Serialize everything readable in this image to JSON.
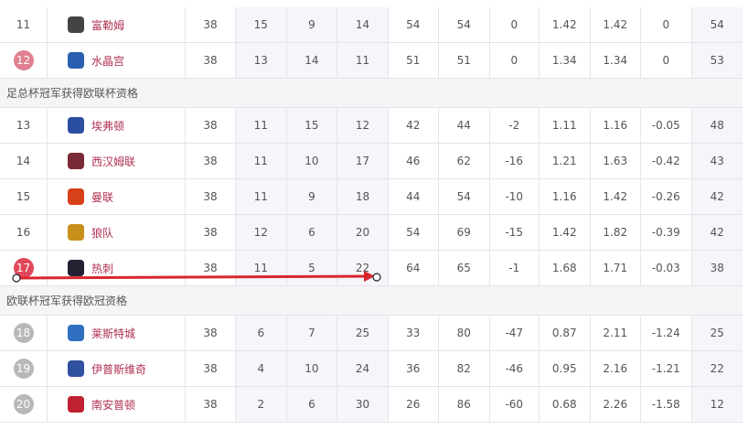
{
  "colors": {
    "team_link": "#b03050",
    "badge_pink": "#e08090",
    "badge_red": "#e0485a",
    "badge_grey": "#b8b8b8",
    "arrow": "#d8262e"
  },
  "sections": [
    {
      "rows": [
        {
          "rank": "11",
          "badge": null,
          "team": "富勒姆",
          "logo": "#444",
          "vals": [
            "38",
            "15",
            "9",
            "14",
            "54",
            "54",
            "0",
            "1.42",
            "1.42",
            "0",
            "54"
          ]
        },
        {
          "rank": "12",
          "badge": "pink",
          "team": "水晶宫",
          "logo": "#2a5fb0",
          "vals": [
            "38",
            "13",
            "14",
            "11",
            "51",
            "51",
            "0",
            "1.34",
            "1.34",
            "0",
            "53"
          ]
        }
      ]
    },
    {
      "title": "足总杯冠军获得欧联杯资格",
      "rows": [
        {
          "rank": "13",
          "badge": null,
          "team": "埃弗顿",
          "logo": "#2b4fa0",
          "vals": [
            "38",
            "11",
            "15",
            "12",
            "42",
            "44",
            "-2",
            "1.11",
            "1.16",
            "-0.05",
            "48"
          ]
        },
        {
          "rank": "14",
          "badge": null,
          "team": "西汉姆联",
          "logo": "#7a2a35",
          "vals": [
            "38",
            "11",
            "10",
            "17",
            "46",
            "62",
            "-16",
            "1.21",
            "1.63",
            "-0.42",
            "43"
          ]
        },
        {
          "rank": "15",
          "badge": null,
          "team": "曼联",
          "logo": "#d8401a",
          "vals": [
            "38",
            "11",
            "9",
            "18",
            "44",
            "54",
            "-10",
            "1.16",
            "1.42",
            "-0.26",
            "42"
          ]
        },
        {
          "rank": "16",
          "badge": null,
          "team": "狼队",
          "logo": "#c8901a",
          "vals": [
            "38",
            "12",
            "6",
            "20",
            "54",
            "69",
            "-15",
            "1.42",
            "1.82",
            "-0.39",
            "42"
          ]
        },
        {
          "rank": "17",
          "badge": "red",
          "team": "热刺",
          "logo": "#223",
          "vals": [
            "38",
            "11",
            "5",
            "22",
            "64",
            "65",
            "-1",
            "1.68",
            "1.71",
            "-0.03",
            "38"
          ]
        }
      ]
    },
    {
      "title": "欧联杯冠军获得欧冠资格",
      "rows": [
        {
          "rank": "18",
          "badge": "grey",
          "team": "莱斯特城",
          "logo": "#3070c0",
          "vals": [
            "38",
            "6",
            "7",
            "25",
            "33",
            "80",
            "-47",
            "0.87",
            "2.11",
            "-1.24",
            "25"
          ]
        },
        {
          "rank": "19",
          "badge": "grey",
          "team": "伊普斯维奇",
          "logo": "#3050a0",
          "vals": [
            "38",
            "4",
            "10",
            "24",
            "36",
            "82",
            "-46",
            "0.95",
            "2.16",
            "-1.21",
            "22"
          ]
        },
        {
          "rank": "20",
          "badge": "grey",
          "team": "南安普顿",
          "logo": "#c02030",
          "vals": [
            "38",
            "2",
            "6",
            "30",
            "26",
            "86",
            "-60",
            "0.68",
            "2.26",
            "-1.58",
            "12"
          ]
        }
      ]
    }
  ]
}
